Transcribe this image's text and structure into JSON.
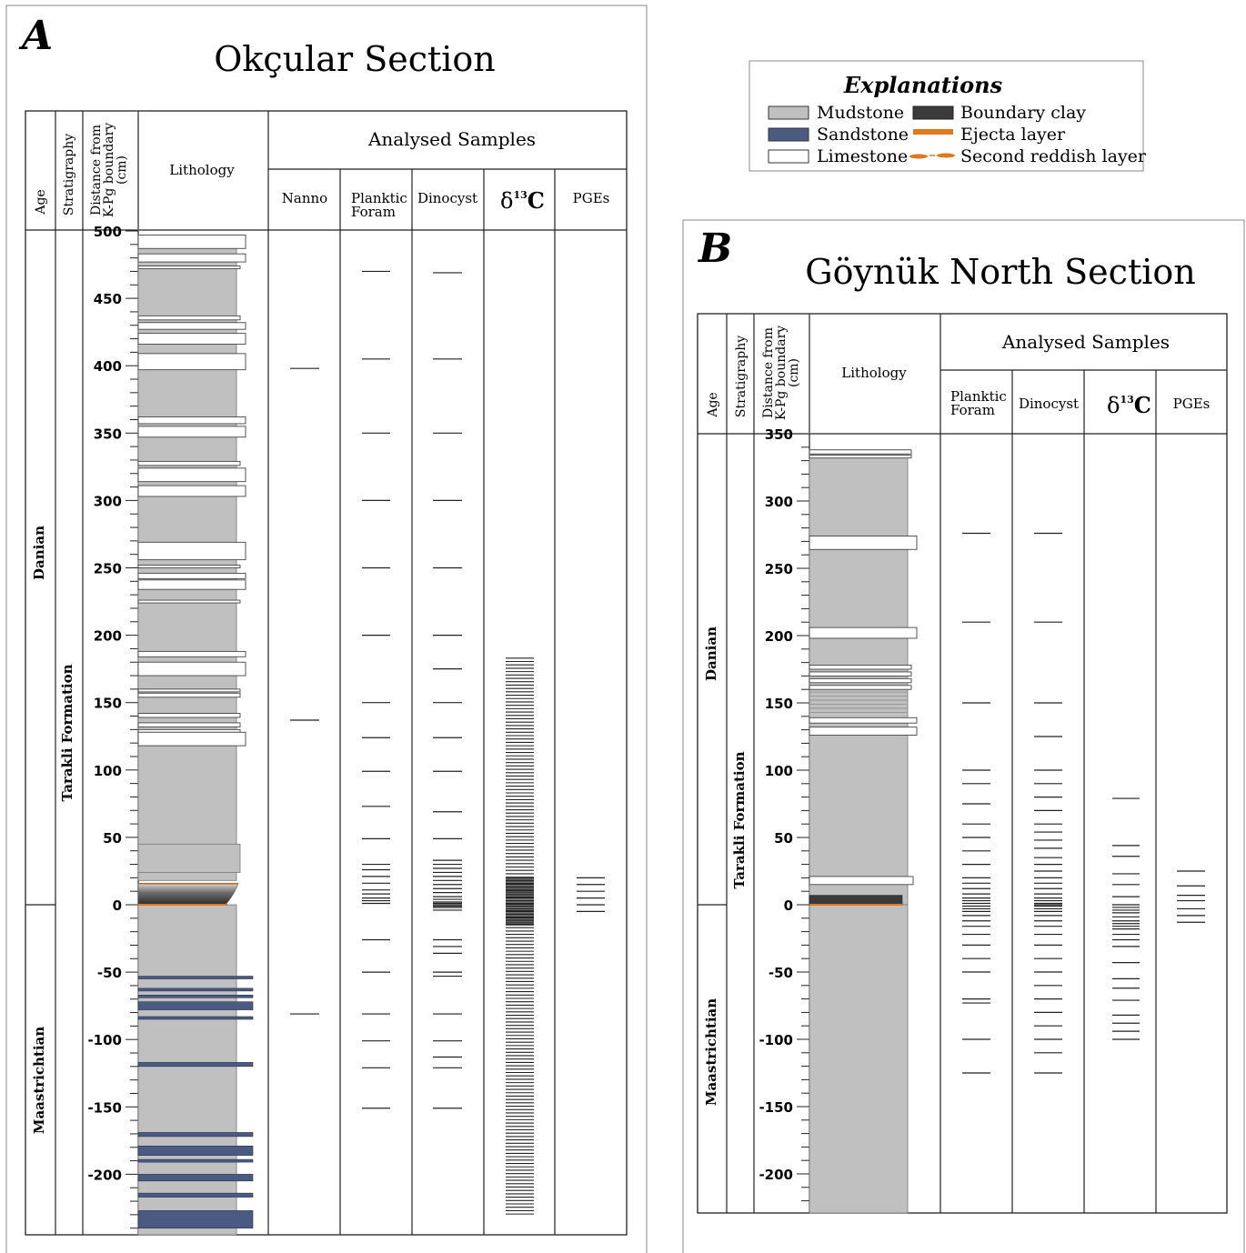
{
  "panel_a": {
    "letter": "A",
    "title": "Okçular Section",
    "headers": {
      "age": "Age",
      "stratigraphy": "Stratigraphy",
      "distance": [
        "Distance from",
        "K-Pg boundary",
        "(cm)"
      ],
      "lithology": "Lithology",
      "analysed": "Analysed Samples",
      "nanno": "Nanno",
      "planktic": [
        "Planktic",
        "Foram"
      ],
      "dinocyst": "Dinocyst",
      "d13c_symbol": "δ",
      "d13c_sup": "13",
      "d13c_c": "C",
      "pges": "PGEs"
    },
    "ages": [
      "Danian",
      "Maastrichtian"
    ],
    "formation": "Tarakli Formation",
    "axis_ticks": [
      "500",
      "450",
      "400",
      "350",
      "300",
      "250",
      "200",
      "150",
      "100",
      "50",
      "0",
      "-50",
      "-100",
      "-150",
      "-200"
    ],
    "limestone_beds": [
      [
        497,
        487
      ],
      [
        483,
        477
      ],
      [
        474,
        472
      ],
      [
        437,
        434
      ],
      [
        432,
        427
      ],
      [
        424,
        416
      ],
      [
        409,
        397
      ],
      [
        362,
        357
      ],
      [
        355,
        347
      ],
      [
        329,
        326
      ],
      [
        324,
        314
      ],
      [
        311,
        303
      ],
      [
        269,
        256
      ],
      [
        252,
        250
      ],
      [
        246,
        242
      ],
      [
        241,
        234
      ],
      [
        226,
        224
      ],
      [
        188,
        184
      ],
      [
        180,
        170
      ],
      [
        160,
        158
      ],
      [
        157,
        154
      ],
      [
        142,
        139
      ],
      [
        135,
        132
      ],
      [
        130,
        128
      ],
      [
        128,
        118
      ]
    ],
    "sandstone_beds": [
      [
        -53,
        -55
      ],
      [
        -62,
        -64
      ],
      [
        -67,
        -69
      ],
      [
        -72,
        -78
      ],
      [
        -83,
        -85
      ],
      [
        -117,
        -120
      ],
      [
        -169,
        -172
      ],
      [
        -179,
        -186
      ],
      [
        -189,
        -191
      ],
      [
        -200,
        -205
      ],
      [
        -214,
        -217
      ],
      [
        -227,
        -240
      ]
    ],
    "samples": {
      "nanno": [
        398,
        137,
        -81
      ],
      "planktic": [
        470,
        405,
        350,
        300,
        250,
        200,
        150,
        124,
        99,
        73,
        49,
        30,
        26,
        21,
        16,
        11,
        8,
        5,
        3,
        1,
        -26,
        -50,
        -81,
        -101,
        -121,
        -151
      ],
      "dinocyst": [
        469,
        405,
        350,
        300,
        250,
        200,
        175,
        150,
        124,
        99,
        69,
        49,
        33,
        30,
        27,
        24,
        21,
        18,
        15,
        12,
        9,
        6,
        4,
        2,
        1,
        0,
        -1,
        -2,
        -4,
        -26,
        -31,
        -36,
        -50,
        -53,
        -81,
        -101,
        -113,
        -121,
        -151
      ],
      "pges": [
        20,
        15,
        10,
        5,
        0,
        -5
      ]
    },
    "d13c_range": [
      183,
      -230
    ]
  },
  "panel_b": {
    "letter": "B",
    "title": "Göynük North Section",
    "headers": {
      "age": "Age",
      "stratigraphy": "Stratigraphy",
      "distance": [
        "Distance from",
        "K-Pg boundary",
        "(cm)"
      ],
      "lithology": "Lithology",
      "analysed": "Analysed Samples",
      "planktic": [
        "Planktic",
        "Foram"
      ],
      "dinocyst": "Dinocyst",
      "d13c_symbol": "δ",
      "d13c_sup": "13",
      "d13c_c": "C",
      "pges": "PGEs"
    },
    "ages": [
      "Danian",
      "Maastrichtian"
    ],
    "formation": "Tarakli Formation",
    "axis_ticks": [
      "350",
      "300",
      "250",
      "200",
      "150",
      "100",
      "50",
      "0",
      "-50",
      "-100",
      "-150",
      "-200"
    ],
    "limestone_beds": [
      [
        338,
        335
      ],
      [
        334,
        332
      ],
      [
        274,
        264
      ],
      [
        206,
        198
      ],
      [
        178,
        175
      ],
      [
        173,
        170
      ],
      [
        168,
        165
      ],
      [
        163,
        160
      ],
      [
        139,
        135
      ],
      [
        132,
        126
      ],
      [
        21,
        15
      ]
    ],
    "samples": {
      "planktic": [
        276,
        210,
        150,
        100,
        90,
        75,
        60,
        50,
        40,
        30,
        20,
        16,
        12,
        8,
        5,
        3,
        1,
        -1,
        -3,
        -5,
        -8,
        -12,
        -16,
        -22,
        -30,
        -40,
        -50,
        -70,
        -73,
        -100,
        -125
      ],
      "dinocyst": [
        276,
        210,
        150,
        125,
        100,
        90,
        80,
        70,
        60,
        54,
        48,
        42,
        35,
        30,
        25,
        20,
        16,
        12,
        8,
        5,
        3,
        1,
        0,
        -1,
        -3,
        -5,
        -8,
        -12,
        -16,
        -22,
        -30,
        -40,
        -50,
        -60,
        -70,
        -80,
        -90,
        -100,
        -110,
        -125
      ],
      "d13c": [
        79,
        44,
        36,
        23,
        15,
        6,
        0,
        -2,
        -4,
        -6,
        -9,
        -12,
        -14,
        -16,
        -18,
        -22,
        -26,
        -31,
        -43,
        -55,
        -62,
        -71,
        -82,
        -88,
        -94,
        -100
      ],
      "pges": [
        25,
        14,
        7,
        3,
        -3,
        -8,
        -13
      ]
    }
  },
  "legend": {
    "title": "Explanations",
    "items": [
      {
        "label": "Mudstone",
        "color": "#c0c0c0"
      },
      {
        "label": "Boundary clay",
        "color": "#3b3b3b"
      },
      {
        "label": "Sandstone",
        "color": "#4a5a80"
      },
      {
        "label": "Ejecta layer",
        "color": "#e07820"
      },
      {
        "label": "Limestone",
        "color": "#ffffff"
      },
      {
        "label": "Second reddish layer",
        "color": "#e07820"
      }
    ]
  }
}
